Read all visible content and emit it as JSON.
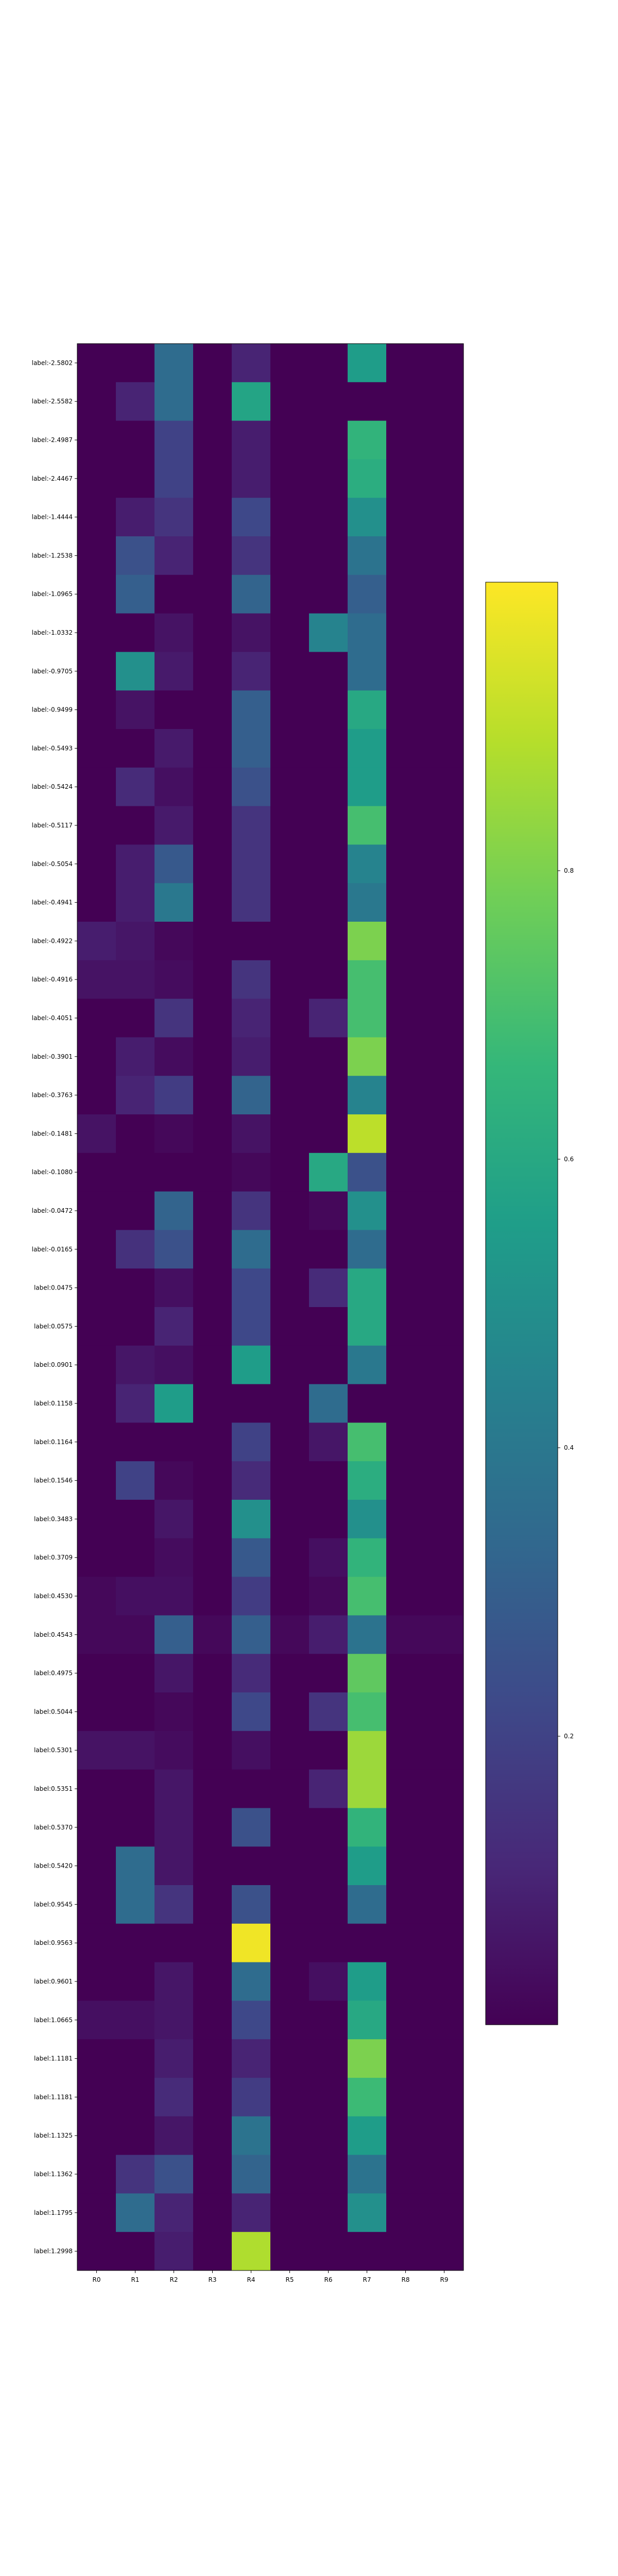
{
  "chart_data": {
    "type": "heatmap",
    "title": "",
    "xlabel": "",
    "ylabel": "",
    "colormap": "viridis",
    "colormap_stops": [
      "#440154",
      "#482878",
      "#3e4989",
      "#31688e",
      "#26828e",
      "#1f9e89",
      "#35b779",
      "#6ece58",
      "#b5de2b",
      "#fde725"
    ],
    "value_range": [
      0.0,
      1.0
    ],
    "columns": [
      "R0",
      "R1",
      "R2",
      "R3",
      "R4",
      "R5",
      "R6",
      "R7",
      "R8",
      "R9"
    ],
    "rows": [
      "label:-2.5802",
      "label:-2.5582",
      "label:-2.4987",
      "label:-2.4467",
      "label:-1.4444",
      "label:-1.2538",
      "label:-1.0965",
      "label:-1.0332",
      "label:-0.9705",
      "label:-0.9499",
      "label:-0.5493",
      "label:-0.5424",
      "label:-0.5117",
      "label:-0.5054",
      "label:-0.4941",
      "label:-0.4922",
      "label:-0.4916",
      "label:-0.4051",
      "label:-0.3901",
      "label:-0.3763",
      "label:-0.1481",
      "label:-0.1080",
      "label:-0.0472",
      "label:-0.0165",
      "label:0.0475",
      "label:0.0575",
      "label:0.0901",
      "label:0.1158",
      "label:0.1164",
      "label:0.1546",
      "label:0.3483",
      "label:0.3709",
      "label:0.4530",
      "label:0.4543",
      "label:0.4975",
      "label:0.5044",
      "label:0.5301",
      "label:0.5351",
      "label:0.5370",
      "label:0.5420",
      "label:0.9545",
      "label:0.9563",
      "label:0.9601",
      "label:1.0665",
      "label:1.1181",
      "label:1.1181",
      "label:1.1325",
      "label:1.1362",
      "label:1.1795",
      "label:1.2998"
    ],
    "values": [
      [
        0.0,
        0.0,
        0.35,
        0.0,
        0.1,
        0.0,
        0.0,
        0.55,
        0.0,
        0.0
      ],
      [
        0.0,
        0.1,
        0.35,
        0.0,
        0.58,
        0.0,
        0.0,
        0.0,
        0.0,
        0.0
      ],
      [
        0.0,
        0.0,
        0.2,
        0.0,
        0.08,
        0.0,
        0.0,
        0.65,
        0.0,
        0.0
      ],
      [
        0.0,
        0.0,
        0.2,
        0.0,
        0.08,
        0.0,
        0.0,
        0.62,
        0.0,
        0.0
      ],
      [
        0.0,
        0.08,
        0.15,
        0.0,
        0.22,
        0.0,
        0.0,
        0.5,
        0.0,
        0.0
      ],
      [
        0.0,
        0.25,
        0.1,
        0.0,
        0.15,
        0.0,
        0.0,
        0.38,
        0.0,
        0.0
      ],
      [
        0.0,
        0.3,
        0.0,
        0.0,
        0.32,
        0.0,
        0.0,
        0.3,
        0.0,
        0.0
      ],
      [
        0.0,
        0.0,
        0.05,
        0.0,
        0.05,
        0.0,
        0.45,
        0.35,
        0.0,
        0.0
      ],
      [
        0.0,
        0.5,
        0.07,
        0.0,
        0.1,
        0.0,
        0.0,
        0.35,
        0.0,
        0.0
      ],
      [
        0.0,
        0.05,
        0.0,
        0.0,
        0.3,
        0.0,
        0.0,
        0.6,
        0.0,
        0.0
      ],
      [
        0.0,
        0.0,
        0.07,
        0.0,
        0.3,
        0.0,
        0.0,
        0.55,
        0.0,
        0.0
      ],
      [
        0.0,
        0.12,
        0.04,
        0.0,
        0.25,
        0.0,
        0.0,
        0.55,
        0.0,
        0.0
      ],
      [
        0.0,
        0.0,
        0.07,
        0.0,
        0.15,
        0.0,
        0.0,
        0.7,
        0.0,
        0.0
      ],
      [
        0.0,
        0.08,
        0.28,
        0.0,
        0.15,
        0.0,
        0.0,
        0.45,
        0.0,
        0.0
      ],
      [
        0.0,
        0.08,
        0.4,
        0.0,
        0.15,
        0.0,
        0.0,
        0.4,
        0.0,
        0.0
      ],
      [
        0.08,
        0.06,
        0.02,
        0.0,
        0.0,
        0.0,
        0.0,
        0.8,
        0.0,
        0.0
      ],
      [
        0.05,
        0.05,
        0.03,
        0.0,
        0.15,
        0.0,
        0.0,
        0.7,
        0.0,
        0.0
      ],
      [
        0.0,
        0.0,
        0.15,
        0.0,
        0.1,
        0.0,
        0.1,
        0.7,
        0.0,
        0.0
      ],
      [
        0.0,
        0.08,
        0.03,
        0.0,
        0.08,
        0.0,
        0.0,
        0.8,
        0.0,
        0.0
      ],
      [
        0.0,
        0.1,
        0.18,
        0.0,
        0.32,
        0.0,
        0.0,
        0.45,
        0.0,
        0.0
      ],
      [
        0.05,
        0.0,
        0.02,
        0.0,
        0.05,
        0.0,
        0.0,
        0.9,
        0.0,
        0.0
      ],
      [
        0.0,
        0.0,
        0.0,
        0.0,
        0.02,
        0.0,
        0.6,
        0.25,
        0.0,
        0.0
      ],
      [
        0.0,
        0.0,
        0.32,
        0.0,
        0.15,
        0.0,
        0.02,
        0.5,
        0.0,
        0.0
      ],
      [
        0.0,
        0.14,
        0.25,
        0.0,
        0.35,
        0.0,
        0.0,
        0.35,
        0.0,
        0.0
      ],
      [
        0.0,
        0.0,
        0.04,
        0.0,
        0.22,
        0.0,
        0.12,
        0.6,
        0.0,
        0.0
      ],
      [
        0.0,
        0.0,
        0.1,
        0.0,
        0.22,
        0.0,
        0.0,
        0.6,
        0.0,
        0.0
      ],
      [
        0.0,
        0.06,
        0.04,
        0.0,
        0.55,
        0.0,
        0.0,
        0.4,
        0.0,
        0.0
      ],
      [
        0.0,
        0.1,
        0.55,
        0.0,
        0.0,
        0.0,
        0.35,
        0.0,
        0.0,
        0.0
      ],
      [
        0.0,
        0.0,
        0.0,
        0.0,
        0.2,
        0.0,
        0.06,
        0.7,
        0.0,
        0.0
      ],
      [
        0.0,
        0.2,
        0.02,
        0.0,
        0.12,
        0.0,
        0.0,
        0.62,
        0.0,
        0.0
      ],
      [
        0.0,
        0.0,
        0.06,
        0.0,
        0.5,
        0.0,
        0.0,
        0.5,
        0.0,
        0.0
      ],
      [
        0.0,
        0.0,
        0.03,
        0.0,
        0.28,
        0.0,
        0.04,
        0.65,
        0.0,
        0.0
      ],
      [
        0.02,
        0.04,
        0.04,
        0.0,
        0.18,
        0.0,
        0.02,
        0.7,
        0.0,
        0.0
      ],
      [
        0.02,
        0.02,
        0.3,
        0.02,
        0.3,
        0.02,
        0.08,
        0.38,
        0.02,
        0.02
      ],
      [
        0.0,
        0.0,
        0.06,
        0.0,
        0.12,
        0.0,
        0.0,
        0.75,
        0.0,
        0.0
      ],
      [
        0.0,
        0.0,
        0.02,
        0.0,
        0.22,
        0.0,
        0.15,
        0.7,
        0.0,
        0.0
      ],
      [
        0.05,
        0.05,
        0.03,
        0.0,
        0.04,
        0.0,
        0.0,
        0.85,
        0.0,
        0.0
      ],
      [
        0.0,
        0.0,
        0.06,
        0.0,
        0.0,
        0.0,
        0.1,
        0.85,
        0.0,
        0.0
      ],
      [
        0.0,
        0.0,
        0.06,
        0.0,
        0.25,
        0.0,
        0.0,
        0.65,
        0.0,
        0.0
      ],
      [
        0.0,
        0.35,
        0.06,
        0.0,
        0.0,
        0.0,
        0.0,
        0.55,
        0.0,
        0.0
      ],
      [
        0.0,
        0.35,
        0.15,
        0.0,
        0.25,
        0.0,
        0.0,
        0.35,
        0.0,
        0.0
      ],
      [
        0.0,
        0.0,
        0.0,
        0.0,
        0.98,
        0.0,
        0.0,
        0.0,
        0.0,
        0.0
      ],
      [
        0.0,
        0.0,
        0.06,
        0.0,
        0.35,
        0.0,
        0.04,
        0.55,
        0.0,
        0.0
      ],
      [
        0.04,
        0.04,
        0.06,
        0.0,
        0.22,
        0.0,
        0.0,
        0.6,
        0.0,
        0.0
      ],
      [
        0.0,
        0.0,
        0.08,
        0.0,
        0.1,
        0.0,
        0.0,
        0.8,
        0.0,
        0.0
      ],
      [
        0.0,
        0.0,
        0.12,
        0.0,
        0.18,
        0.0,
        0.0,
        0.68,
        0.0,
        0.0
      ],
      [
        0.0,
        0.0,
        0.06,
        0.0,
        0.38,
        0.0,
        0.0,
        0.55,
        0.0,
        0.0
      ],
      [
        0.0,
        0.15,
        0.25,
        0.0,
        0.32,
        0.0,
        0.0,
        0.38,
        0.0,
        0.0
      ],
      [
        0.0,
        0.35,
        0.1,
        0.0,
        0.1,
        0.0,
        0.0,
        0.5,
        0.0,
        0.0
      ],
      [
        0.0,
        0.0,
        0.08,
        0.0,
        0.88,
        0.0,
        0.0,
        0.0,
        0.0,
        0.0
      ]
    ],
    "colorbar": {
      "ticks": [
        0.2,
        0.4,
        0.6,
        0.8
      ],
      "tick_labels": [
        "0.2",
        "0.4",
        "0.6",
        "0.8"
      ]
    }
  }
}
